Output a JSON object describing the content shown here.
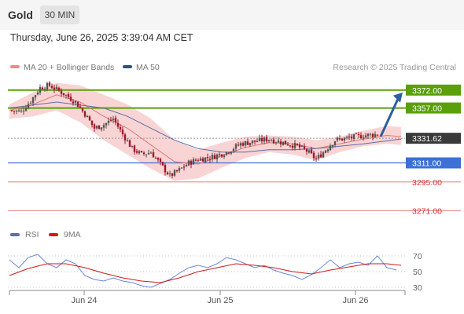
{
  "header": {
    "asset": "Gold",
    "timeframe": "30 MIN",
    "datetime": "Thursday, June 26, 2025 3:39:04 AM CET"
  },
  "legend": {
    "ma20_label": "MA 20 + Bollinger Bands",
    "ma50_label": "MA 50",
    "copyright": "Research © 2025 Trading Central"
  },
  "rsi_legend": {
    "rsi_label": "RSI",
    "ma_label": "9MA"
  },
  "colors": {
    "up_candle": "#555555",
    "down_candle": "#a0182a",
    "bollinger": "#f7c6c6",
    "ma20": "#e27676",
    "ma50": "#5b6ea8",
    "target": "#5aa00a",
    "pivot": "#3d6fd6",
    "support": "#d83434",
    "arrow": "#2e5f9e"
  },
  "chart_data": [
    {
      "type": "candlestick",
      "title": "Gold",
      "x_ticks": [
        "Jun 24",
        "Jun 25",
        "Jun 26"
      ],
      "ylim": [
        3262,
        3385
      ],
      "last_price": 3331.62,
      "levels": [
        {
          "label": "3372.00",
          "value": 3372.0,
          "kind": "target"
        },
        {
          "label": "3357.00",
          "value": 3357.0,
          "kind": "target"
        },
        {
          "label": "3331.62",
          "value": 3331.62,
          "kind": "last"
        },
        {
          "label": "3311.00",
          "value": 3311.0,
          "kind": "pivot"
        },
        {
          "label": "3295.00",
          "value": 3295.0,
          "kind": "support"
        },
        {
          "label": "3271.00",
          "value": 3271.0,
          "kind": "support"
        }
      ],
      "anchor_points": [
        [
          0,
          3355
        ],
        [
          5,
          3354
        ],
        [
          9,
          3363
        ],
        [
          13,
          3374
        ],
        [
          17,
          3376
        ],
        [
          23,
          3369
        ],
        [
          28,
          3362
        ],
        [
          32,
          3352
        ],
        [
          36,
          3340
        ],
        [
          40,
          3343
        ],
        [
          44,
          3348
        ],
        [
          48,
          3335
        ],
        [
          52,
          3323
        ],
        [
          56,
          3318
        ],
        [
          60,
          3320
        ],
        [
          64,
          3310
        ],
        [
          68,
          3300
        ],
        [
          72,
          3305
        ],
        [
          76,
          3311
        ],
        [
          80,
          3314
        ],
        [
          86,
          3316
        ],
        [
          92,
          3320
        ],
        [
          98,
          3327
        ],
        [
          104,
          3329
        ],
        [
          110,
          3331
        ],
        [
          116,
          3328
        ],
        [
          122,
          3325
        ],
        [
          126,
          3321
        ],
        [
          130,
          3314
        ],
        [
          134,
          3322
        ],
        [
          138,
          3330
        ],
        [
          144,
          3332
        ],
        [
          150,
          3334
        ],
        [
          156,
          3335
        ],
        [
          160,
          3336
        ],
        [
          164,
          3332
        ],
        [
          166,
          3331
        ]
      ],
      "ma20": [
        [
          0,
          3355
        ],
        [
          10,
          3360
        ],
        [
          20,
          3368
        ],
        [
          30,
          3362
        ],
        [
          40,
          3350
        ],
        [
          50,
          3340
        ],
        [
          60,
          3326
        ],
        [
          70,
          3312
        ],
        [
          80,
          3310
        ],
        [
          90,
          3317
        ],
        [
          100,
          3324
        ],
        [
          110,
          3328
        ],
        [
          120,
          3327
        ],
        [
          130,
          3323
        ],
        [
          140,
          3327
        ],
        [
          150,
          3331
        ],
        [
          160,
          3334
        ],
        [
          166,
          3333
        ]
      ],
      "ma50": [
        [
          0,
          3357
        ],
        [
          20,
          3362
        ],
        [
          40,
          3357
        ],
        [
          50,
          3350
        ],
        [
          60,
          3340
        ],
        [
          70,
          3330
        ],
        [
          80,
          3323
        ],
        [
          90,
          3320
        ],
        [
          100,
          3320
        ],
        [
          110,
          3322
        ],
        [
          120,
          3322
        ],
        [
          130,
          3323
        ],
        [
          140,
          3325
        ],
        [
          150,
          3327
        ],
        [
          166,
          3331
        ]
      ],
      "bollinger_upper": [
        [
          0,
          3360
        ],
        [
          10,
          3370
        ],
        [
          20,
          3378
        ],
        [
          30,
          3376
        ],
        [
          40,
          3368
        ],
        [
          50,
          3360
        ],
        [
          60,
          3348
        ],
        [
          70,
          3330
        ],
        [
          80,
          3322
        ],
        [
          90,
          3328
        ],
        [
          100,
          3333
        ],
        [
          110,
          3334
        ],
        [
          120,
          3333
        ],
        [
          130,
          3330
        ],
        [
          140,
          3333
        ],
        [
          150,
          3338
        ],
        [
          160,
          3342
        ],
        [
          166,
          3341
        ]
      ],
      "bollinger_lower": [
        [
          0,
          3348
        ],
        [
          10,
          3350
        ],
        [
          20,
          3355
        ],
        [
          30,
          3345
        ],
        [
          40,
          3330
        ],
        [
          50,
          3318
        ],
        [
          60,
          3306
        ],
        [
          70,
          3296
        ],
        [
          80,
          3298
        ],
        [
          90,
          3307
        ],
        [
          100,
          3315
        ],
        [
          110,
          3320
        ],
        [
          120,
          3318
        ],
        [
          130,
          3313
        ],
        [
          140,
          3320
        ],
        [
          150,
          3325
        ],
        [
          160,
          3327
        ],
        [
          166,
          3326
        ]
      ]
    },
    {
      "type": "line",
      "title": "RSI",
      "y_ticks": [
        70,
        50,
        30
      ],
      "ylim": [
        20,
        80
      ],
      "rsi": [
        [
          0,
          65
        ],
        [
          4,
          55
        ],
        [
          8,
          68
        ],
        [
          12,
          72
        ],
        [
          16,
          60
        ],
        [
          20,
          55
        ],
        [
          24,
          65
        ],
        [
          28,
          60
        ],
        [
          32,
          45
        ],
        [
          36,
          40
        ],
        [
          40,
          38
        ],
        [
          44,
          42
        ],
        [
          48,
          38
        ],
        [
          52,
          36
        ],
        [
          56,
          32
        ],
        [
          60,
          30
        ],
        [
          64,
          35
        ],
        [
          68,
          40
        ],
        [
          72,
          48
        ],
        [
          76,
          55
        ],
        [
          80,
          58
        ],
        [
          84,
          55
        ],
        [
          88,
          60
        ],
        [
          92,
          68
        ],
        [
          96,
          65
        ],
        [
          100,
          60
        ],
        [
          104,
          55
        ],
        [
          108,
          58
        ],
        [
          112,
          52
        ],
        [
          116,
          48
        ],
        [
          120,
          45
        ],
        [
          124,
          40
        ],
        [
          128,
          46
        ],
        [
          132,
          55
        ],
        [
          136,
          65
        ],
        [
          140,
          55
        ],
        [
          144,
          60
        ],
        [
          148,
          62
        ],
        [
          152,
          58
        ],
        [
          156,
          70
        ],
        [
          160,
          55
        ],
        [
          164,
          52
        ]
      ],
      "ma9": [
        [
          0,
          45
        ],
        [
          8,
          54
        ],
        [
          16,
          60
        ],
        [
          24,
          60
        ],
        [
          32,
          55
        ],
        [
          40,
          48
        ],
        [
          48,
          42
        ],
        [
          56,
          38
        ],
        [
          64,
          36
        ],
        [
          72,
          42
        ],
        [
          80,
          50
        ],
        [
          88,
          55
        ],
        [
          96,
          60
        ],
        [
          104,
          58
        ],
        [
          112,
          55
        ],
        [
          120,
          50
        ],
        [
          128,
          47
        ],
        [
          136,
          52
        ],
        [
          144,
          56
        ],
        [
          152,
          60
        ],
        [
          160,
          60
        ],
        [
          166,
          58
        ]
      ]
    }
  ]
}
